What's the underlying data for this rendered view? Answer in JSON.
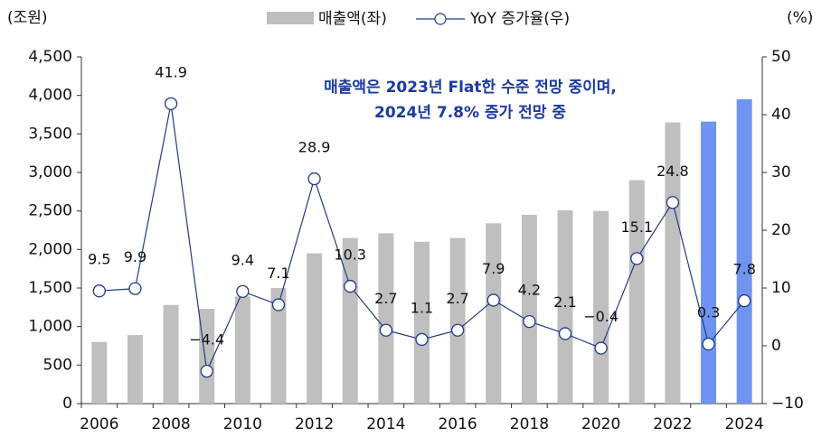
{
  "chart_data": {
    "type": "bar_line",
    "y_unit": "(조원)",
    "y2_unit": "(%)",
    "annotation": [
      "매출액은 2023년 Flat한 수준 전망 중이며,",
      "2024년 7.8% 증가 전망 중"
    ],
    "categories": [
      "2006",
      null,
      "2008",
      null,
      "2010",
      null,
      "2012",
      null,
      "2014",
      null,
      "2016",
      null,
      "2018",
      null,
      "2020",
      null,
      "2022",
      null,
      "2024"
    ],
    "series": [
      {
        "name": "매출액(좌)",
        "type": "bar",
        "color": "#bfbfbf",
        "colors": [
          "#bfbfbf",
          "#bfbfbf",
          "#bfbfbf",
          "#bfbfbf",
          "#bfbfbf",
          "#bfbfbf",
          "#bfbfbf",
          "#bfbfbf",
          "#bfbfbf",
          "#bfbfbf",
          "#bfbfbf",
          "#bfbfbf",
          "#bfbfbf",
          "#bfbfbf",
          "#bfbfbf",
          "#bfbfbf",
          "#bfbfbf",
          "#6f94f0",
          "#6f94f0"
        ],
        "values": [
          800,
          890,
          1280,
          1230,
          1390,
          1500,
          1950,
          2150,
          2210,
          2100,
          2150,
          2340,
          2450,
          2510,
          2500,
          2900,
          3650,
          3660,
          3950
        ]
      },
      {
        "name": "YoY 증가율(우)",
        "type": "line",
        "axis": "y2",
        "color": "#1f3c88",
        "values": [
          9.5,
          9.9,
          41.9,
          -4.4,
          9.4,
          7.1,
          28.9,
          10.3,
          2.7,
          1.1,
          2.7,
          7.9,
          4.2,
          2.1,
          -0.4,
          15.1,
          24.8,
          0.3,
          7.8
        ],
        "value_labels": [
          "9.5",
          "9.9",
          "41.9",
          "−4.4",
          "9.4",
          "7.1",
          "28.9",
          "10.3",
          "2.7",
          "1.1",
          "2.7",
          "7.9",
          "4.2",
          "2.1",
          "−0.4",
          "15.1",
          "24.8",
          "0.3",
          "7.8"
        ]
      }
    ],
    "ylim": [
      0,
      4500
    ],
    "yticks": [
      0,
      500,
      {
        "value": 1000,
        "label": "1,000"
      },
      {
        "value": 1500,
        "label": "1,500"
      },
      {
        "value": 2000,
        "label": "2,000"
      },
      {
        "value": 2500,
        "label": "2,500"
      },
      {
        "value": 3000,
        "label": "3,000"
      },
      {
        "value": 3500,
        "label": "3,500"
      },
      {
        "value": 4000,
        "label": "4,000"
      },
      {
        "value": 4500,
        "label": "4,500"
      }
    ],
    "y2lim": [
      -10,
      50
    ],
    "y2ticks": [
      {
        "value": -10,
        "label": "−10"
      },
      0,
      10,
      20,
      30,
      40,
      50
    ],
    "annotation_color": "#1a3aa0"
  }
}
